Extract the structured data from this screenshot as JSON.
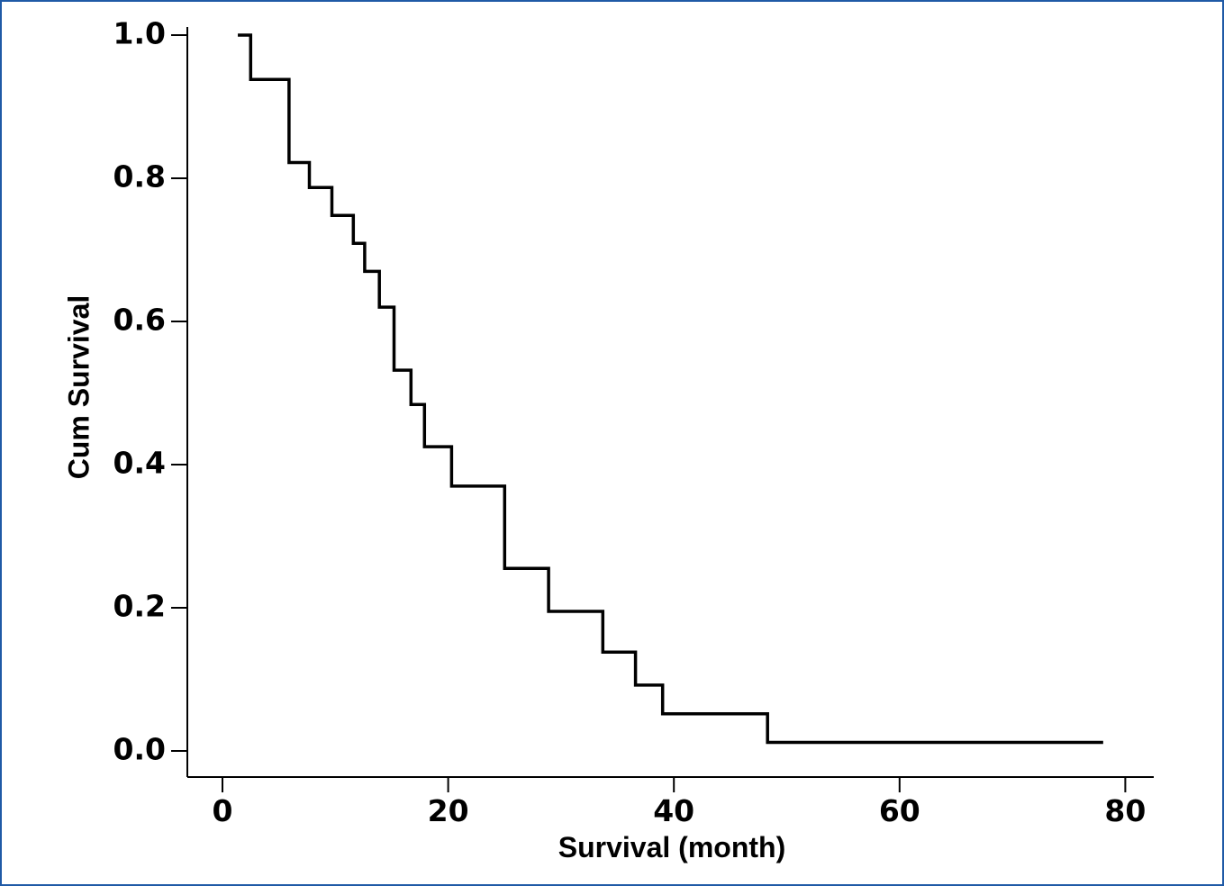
{
  "chart_data": {
    "type": "line",
    "step": true,
    "xlabel": "Survival (month)",
    "ylabel": "Cum Survival",
    "xlim": [
      -3,
      82
    ],
    "ylim": [
      -0.036,
      1.02
    ],
    "x_ticks": [
      0,
      20,
      40,
      60,
      80
    ],
    "x_tick_labels": [
      "0",
      "20",
      "40",
      "60",
      "80"
    ],
    "y_ticks": [
      0.0,
      0.2,
      0.4,
      0.6,
      0.8,
      1.0
    ],
    "y_tick_labels": [
      "0.0",
      "0.2",
      "0.4",
      "0.6",
      "0.8",
      "1.0"
    ],
    "grid": false,
    "series": [
      {
        "points": [
          [
            1.5,
            1.0
          ],
          [
            2.5,
            1.0
          ],
          [
            2.5,
            0.938
          ],
          [
            5.9,
            0.938
          ],
          [
            5.9,
            0.822
          ],
          [
            7.7,
            0.822
          ],
          [
            7.7,
            0.787
          ],
          [
            9.7,
            0.787
          ],
          [
            9.7,
            0.748
          ],
          [
            11.6,
            0.748
          ],
          [
            11.6,
            0.709
          ],
          [
            12.6,
            0.709
          ],
          [
            12.6,
            0.67
          ],
          [
            13.9,
            0.67
          ],
          [
            13.9,
            0.62
          ],
          [
            15.2,
            0.62
          ],
          [
            15.2,
            0.532
          ],
          [
            16.7,
            0.532
          ],
          [
            16.7,
            0.484
          ],
          [
            17.9,
            0.484
          ],
          [
            17.9,
            0.425
          ],
          [
            20.3,
            0.425
          ],
          [
            20.3,
            0.37
          ],
          [
            25.0,
            0.37
          ],
          [
            25.0,
            0.255
          ],
          [
            28.9,
            0.255
          ],
          [
            28.9,
            0.195
          ],
          [
            33.7,
            0.195
          ],
          [
            33.7,
            0.138
          ],
          [
            36.6,
            0.138
          ],
          [
            36.6,
            0.092
          ],
          [
            39.0,
            0.092
          ],
          [
            39.0,
            0.052
          ],
          [
            48.3,
            0.052
          ],
          [
            48.3,
            0.012
          ],
          [
            77.9,
            0.012
          ]
        ]
      }
    ]
  }
}
